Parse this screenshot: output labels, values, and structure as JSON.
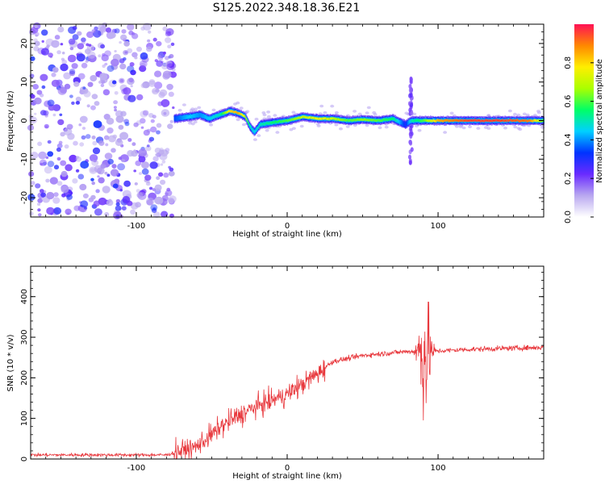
{
  "title": "S125.2022.348.18.36.E21",
  "chart_data": [
    {
      "type": "heatmap",
      "xlabel": "Height of straight line (km)",
      "ylabel": "Frequency (Hz)",
      "xlim": [
        -170,
        170
      ],
      "ylim": [
        -25,
        25
      ],
      "xticks": [
        -100,
        0,
        100
      ],
      "yticks": [
        -20,
        -10,
        0,
        10,
        20
      ],
      "colorbar": {
        "label": "Normalized spectral amplitude",
        "range": [
          0,
          1
        ],
        "ticks": [
          0.0,
          0.2,
          0.4,
          0.6,
          0.8
        ],
        "colors": [
          "#ffffff",
          "#b9a8f0",
          "#6a2bff",
          "#0033ff",
          "#00d0ff",
          "#00ff66",
          "#aaff00",
          "#ffee00",
          "#ff8800",
          "#ff1155"
        ]
      },
      "noise_region_x": [
        -170,
        -75
      ],
      "ridge": {
        "x": [
          -75,
          -65,
          -58,
          -52,
          -45,
          -38,
          -33,
          -28,
          -25,
          -22,
          -18,
          -10,
          0,
          10,
          20,
          30,
          40,
          50,
          60,
          70,
          75,
          78,
          82,
          86,
          90,
          100,
          120,
          140,
          160,
          170
        ],
        "y": [
          0.5,
          1.0,
          1.5,
          0.5,
          1.5,
          2.5,
          2.0,
          1.0,
          -1.5,
          -3.0,
          -1.0,
          -0.5,
          0.0,
          1.0,
          0.5,
          0.5,
          0.0,
          0.3,
          0.0,
          0.5,
          -0.5,
          -1.0,
          0.0,
          0.0,
          0.0,
          0.0,
          0.0,
          0.0,
          0.0,
          0.0
        ],
        "amplitude": [
          0.35,
          0.45,
          0.4,
          0.45,
          0.5,
          0.8,
          0.85,
          0.7,
          0.5,
          0.45,
          0.5,
          0.55,
          0.6,
          0.7,
          0.75,
          0.7,
          0.6,
          0.65,
          0.6,
          0.55,
          0.4,
          0.3,
          0.5,
          0.55,
          0.6,
          0.85,
          0.95,
          0.95,
          0.9,
          0.6
        ]
      },
      "spike_x": 82
    },
    {
      "type": "line",
      "xlabel": "Height of straight line (km)",
      "ylabel": "SNR (10 * v/v)",
      "xlim": [
        -170,
        170
      ],
      "ylim": [
        0,
        475
      ],
      "xticks": [
        -100,
        0,
        100
      ],
      "yticks": [
        0,
        100,
        200,
        300,
        400
      ],
      "color": "#e8383d",
      "trend": {
        "x": [
          -170,
          -80,
          -60,
          -40,
          -20,
          0,
          10,
          20,
          30,
          50,
          70,
          80,
          85,
          95,
          120,
          170
        ],
        "y": [
          10,
          10,
          30,
          90,
          130,
          160,
          185,
          210,
          240,
          255,
          262,
          265,
          265,
          265,
          270,
          275
        ]
      },
      "spike_region_x": [
        84,
        98
      ]
    }
  ]
}
